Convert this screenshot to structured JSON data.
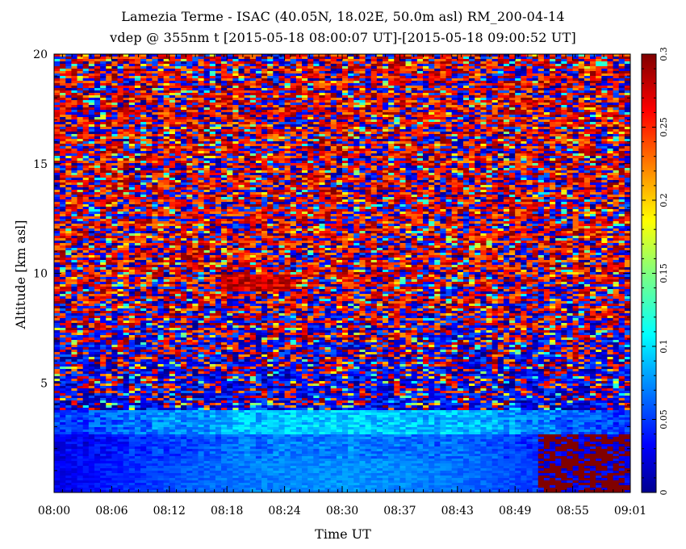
{
  "title_line1": "Lamezia Terme - ISAC (40.05N, 18.02E, 50.0m asl) RM_200-04-14",
  "title_line2": "vdep @ 355nm t [2015-05-18 08:00:07 UT]-[2015-05-18 09:00:52 UT]",
  "chart_data": {
    "type": "heatmap",
    "title": "Lamezia Terme - ISAC (40.05N, 18.02E, 50.0m asl) RM_200-04-14",
    "subtitle": "vdep @ 355nm t [2015-05-18 08:00:07 UT]-[2015-05-18 09:00:52 UT]",
    "xlabel": "Time UT",
    "ylabel": "Altitude [km asl]",
    "x_ticks": [
      "08:00",
      "08:06",
      "08:12",
      "08:18",
      "08:24",
      "08:30",
      "08:37",
      "08:43",
      "08:49",
      "08:55",
      "09:01"
    ],
    "y_ticks": [
      5,
      10,
      15,
      20
    ],
    "ylim": [
      0,
      20
    ],
    "colorbar": {
      "ticks": [
        0,
        0.05,
        0.1,
        0.15,
        0.2,
        0.25,
        0.3
      ],
      "range": [
        0,
        0.3
      ],
      "colormap": "jet"
    },
    "features": {
      "near_surface_layer_top_km": 2.7,
      "aerosol_layer_top_km": 3.8,
      "elevated_layer_km": [
        9.2,
        9.9
      ],
      "elevated_layer_time": [
        "08:18",
        "08:25"
      ],
      "near_surface_value_range": [
        0.02,
        0.1
      ],
      "high_value_block_start": "08:51"
    }
  }
}
